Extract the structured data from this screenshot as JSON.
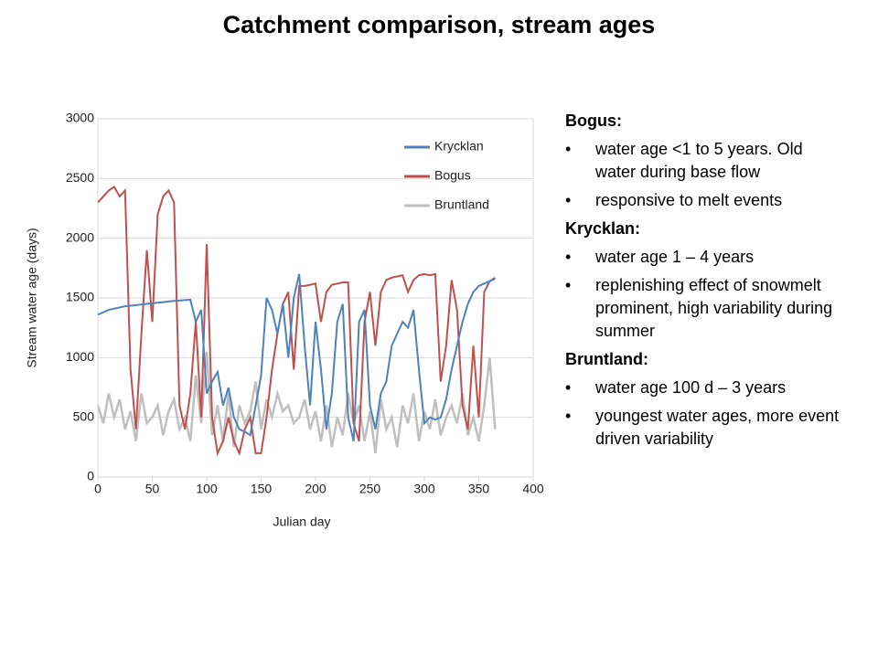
{
  "chart_data": {
    "type": "line",
    "title": "Catchment comparison, stream ages",
    "xlabel": "Julian day",
    "ylabel": "Stream water age (days)",
    "x": [
      0,
      5,
      10,
      15,
      20,
      25,
      30,
      35,
      40,
      45,
      50,
      55,
      60,
      65,
      70,
      75,
      80,
      85,
      90,
      95,
      100,
      105,
      110,
      115,
      120,
      125,
      130,
      135,
      140,
      145,
      150,
      155,
      160,
      165,
      170,
      175,
      180,
      185,
      190,
      195,
      200,
      205,
      210,
      215,
      220,
      225,
      230,
      235,
      240,
      245,
      250,
      255,
      260,
      265,
      270,
      275,
      280,
      285,
      290,
      295,
      300,
      305,
      310,
      315,
      320,
      325,
      330,
      335,
      340,
      345,
      350,
      355,
      360,
      365
    ],
    "series": [
      {
        "name": "Krycklan",
        "color": "#4f81bd",
        "values": [
          1360,
          1380,
          1400,
          1410,
          1420,
          1430,
          1435,
          1440,
          1445,
          1450,
          1455,
          1460,
          1465,
          1470,
          1475,
          1478,
          1482,
          1485,
          1300,
          1400,
          700,
          800,
          880,
          600,
          750,
          500,
          400,
          380,
          350,
          600,
          850,
          1500,
          1400,
          1200,
          1450,
          1000,
          1500,
          1700,
          1100,
          600,
          1300,
          900,
          400,
          700,
          1300,
          1450,
          500,
          300,
          1300,
          1400,
          600,
          400,
          700,
          800,
          1100,
          1200,
          1300,
          1250,
          1400,
          900,
          450,
          500,
          480,
          500,
          650,
          900,
          1100,
          1300,
          1450,
          1550,
          1600,
          1620,
          1640,
          1660
        ]
      },
      {
        "name": "Bogus",
        "color": "#c0504d",
        "values": [
          2300,
          2350,
          2400,
          2430,
          2350,
          2400,
          900,
          400,
          1200,
          1900,
          1300,
          2200,
          2350,
          2400,
          2300,
          600,
          400,
          700,
          1300,
          500,
          1950,
          500,
          200,
          300,
          500,
          300,
          200,
          400,
          500,
          200,
          200,
          500,
          900,
          1200,
          1450,
          1550,
          900,
          1600,
          1600,
          1610,
          1620,
          1300,
          1550,
          1610,
          1620,
          1630,
          1630,
          450,
          300,
          1300,
          1550,
          1100,
          1550,
          1650,
          1670,
          1680,
          1690,
          1550,
          1650,
          1690,
          1700,
          1690,
          1700,
          800,
          1100,
          1650,
          1400,
          600,
          400,
          1100,
          500,
          1550,
          1640,
          1670
        ]
      },
      {
        "name": "Bruntland",
        "color": "#bfbfbf",
        "values": [
          600,
          450,
          700,
          500,
          650,
          400,
          550,
          300,
          700,
          450,
          500,
          600,
          350,
          550,
          650,
          400,
          500,
          300,
          850,
          450,
          1050,
          350,
          600,
          300,
          700,
          250,
          600,
          450,
          550,
          800,
          400,
          650,
          500,
          700,
          550,
          600,
          450,
          500,
          650,
          400,
          550,
          300,
          600,
          250,
          500,
          350,
          700,
          450,
          600,
          300,
          550,
          200,
          650,
          400,
          500,
          250,
          600,
          450,
          700,
          300,
          550,
          400,
          650,
          350,
          500,
          600,
          450,
          700,
          350,
          500,
          300,
          600,
          1000,
          400
        ]
      }
    ],
    "xlim": [
      0,
      400
    ],
    "xticks": [
      0,
      50,
      100,
      150,
      200,
      250,
      300,
      350,
      400
    ],
    "ylim": [
      0,
      3000
    ],
    "yticks": [
      0,
      500,
      1000,
      1500,
      2000,
      2500,
      3000
    ],
    "grid": true,
    "legend": "upper right"
  },
  "notes": [
    {
      "heading": "Bogus:",
      "bullets": [
        "water age <1 to 5 years. Old water during base flow",
        "responsive to melt events"
      ]
    },
    {
      "heading": "Krycklan:",
      "bullets": [
        "water age 1 – 4 years",
        "replenishing effect of snowmelt prominent, high variability during summer"
      ]
    },
    {
      "heading": "Bruntland:",
      "bullets": [
        "water age 100 d – 3 years",
        "youngest water ages, more event driven variability"
      ]
    }
  ]
}
